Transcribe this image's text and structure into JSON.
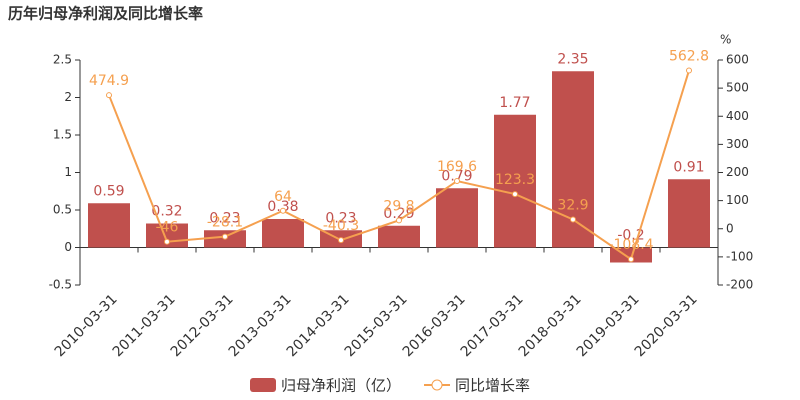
{
  "chart_data": {
    "type": "bar",
    "title": "历年归母净利润及同比增长率",
    "categories": [
      "2010-03-31",
      "2011-03-31",
      "2012-03-31",
      "2013-03-31",
      "2014-03-31",
      "2015-03-31",
      "2016-03-31",
      "2017-03-31",
      "2018-03-31",
      "2019-03-31",
      "2020-03-31"
    ],
    "series": [
      {
        "name": "归母净利润（亿）",
        "type": "bar",
        "color": "#c0504d",
        "values": [
          0.59,
          0.32,
          0.23,
          0.38,
          0.23,
          0.29,
          0.79,
          1.77,
          2.35,
          -0.2,
          0.91
        ]
      },
      {
        "name": "同比增长率",
        "type": "line",
        "axis": "y2",
        "color": "#f5a04f",
        "values": [
          474.9,
          -46,
          -28.1,
          64,
          -40.3,
          29.8,
          169.6,
          123.3,
          32.9,
          -108.4,
          562.8
        ]
      }
    ],
    "ylim": [
      -0.5,
      2.5
    ],
    "yticks": [
      -0.5,
      0,
      0.5,
      1,
      1.5,
      2,
      2.5
    ],
    "y2label": "%",
    "y2lim": [
      -200,
      600
    ],
    "y2ticks": [
      -200,
      -100,
      0,
      100,
      200,
      300,
      400,
      500,
      600
    ]
  }
}
